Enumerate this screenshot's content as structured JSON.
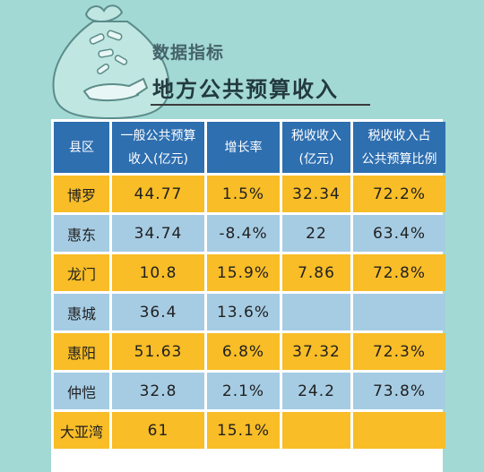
{
  "header": {
    "kicker": "数据指标",
    "title": "地方公共预算收入"
  },
  "table": {
    "headers": [
      [
        "县区"
      ],
      [
        "一般公共预算",
        "收入(亿元)"
      ],
      [
        "增长率"
      ],
      [
        "税收收入",
        "(亿元)"
      ],
      [
        "税收收入占",
        "公共预算比例"
      ]
    ],
    "rows": [
      [
        "博罗",
        "44.77",
        "1.5%",
        "32.34",
        "72.2%"
      ],
      [
        "惠东",
        "34.74",
        "-8.4%",
        "22",
        "63.4%"
      ],
      [
        "龙门",
        "10.8",
        "15.9%",
        "7.86",
        "72.8%"
      ],
      [
        "惠城",
        "36.4",
        "13.6%",
        "",
        ""
      ],
      [
        "惠阳",
        "51.63",
        "6.8%",
        "37.32",
        "72.3%"
      ],
      [
        "仲恺",
        "32.8",
        "2.1%",
        "24.2",
        "73.8%"
      ],
      [
        "大亚湾",
        "61",
        "15.1%",
        "",
        ""
      ]
    ]
  },
  "colors": {
    "background": "#a3d9d4",
    "header_cell": "#2e6fb0",
    "row_odd": "#f8bd27",
    "row_even": "#a6cce4"
  },
  "icons": [
    "money-bag-icon"
  ]
}
